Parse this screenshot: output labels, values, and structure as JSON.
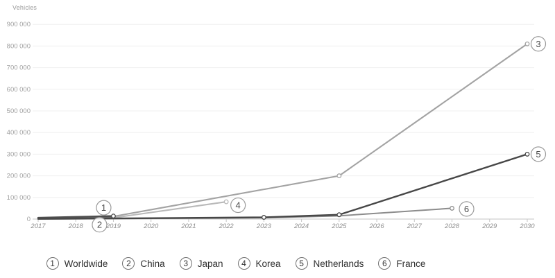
{
  "chart_data": {
    "type": "line",
    "title": "",
    "ylabel": "Vehicles",
    "xlabel": "",
    "ylim": [
      0,
      900000
    ],
    "y_tick_step": 100000,
    "y_ticks": [
      "0",
      "100 000",
      "200 000",
      "300 000",
      "400 000",
      "500 000",
      "600 000",
      "700 000",
      "800 000",
      "900 000"
    ],
    "x_ticks": [
      "2017",
      "2018",
      "2019",
      "2020",
      "2021",
      "2022",
      "2023",
      "2024",
      "2025",
      "2026",
      "2027",
      "2028",
      "2029",
      "2030"
    ],
    "x_range": [
      2017,
      2030
    ],
    "grid": "horizontal",
    "legend_position": "bottom",
    "colors": {
      "grid": "#efefef",
      "axis": "#c6c6c6",
      "axis_label": "#8f8f8f",
      "y_label": "#a0a0a0",
      "annotation_ring": "#9a9a9a",
      "annotation_text": "#4a4a4a"
    },
    "series": [
      {
        "num": "1",
        "name": "Worldwide",
        "color": "#4e4e4e",
        "width": 2.4,
        "points": [
          [
            2017,
            6000
          ],
          [
            2018,
            10000
          ],
          [
            2019,
            14000
          ]
        ],
        "markers": [
          [
            2019,
            14000
          ]
        ]
      },
      {
        "num": "2",
        "name": "China",
        "color": "#6e6e6e",
        "width": 2.2,
        "points": [
          [
            2017,
            2000
          ],
          [
            2018,
            5000
          ],
          [
            2019,
            9000
          ]
        ],
        "markers": []
      },
      {
        "num": "3",
        "name": "Japan",
        "color": "#a3a3a3",
        "width": 2.1,
        "points": [
          [
            2019,
            12000
          ],
          [
            2025,
            200000
          ],
          [
            2030,
            810000
          ]
        ],
        "markers": [
          [
            2025,
            200000
          ],
          [
            2030,
            810000
          ]
        ]
      },
      {
        "num": "4",
        "name": "Korea",
        "color": "#b9b9b9",
        "width": 2.1,
        "points": [
          [
            2019,
            6000
          ],
          [
            2022,
            80000
          ]
        ],
        "markers": [
          [
            2022,
            80000
          ]
        ]
      },
      {
        "num": "5",
        "name": "Netherlands",
        "color": "#474747",
        "width": 2.4,
        "points": [
          [
            2017,
            1000
          ],
          [
            2019,
            3000
          ],
          [
            2023,
            8000
          ],
          [
            2025,
            20000
          ],
          [
            2030,
            300000
          ]
        ],
        "markers": [
          [
            2023,
            8000
          ],
          [
            2025,
            20000
          ],
          [
            2030,
            300000
          ]
        ]
      },
      {
        "num": "6",
        "name": "France",
        "color": "#8c8c8c",
        "width": 2.0,
        "points": [
          [
            2017,
            500
          ],
          [
            2019,
            2000
          ],
          [
            2023,
            6000
          ],
          [
            2025,
            15000
          ],
          [
            2028,
            50000
          ]
        ],
        "markers": [
          [
            2028,
            50000
          ]
        ]
      }
    ]
  }
}
